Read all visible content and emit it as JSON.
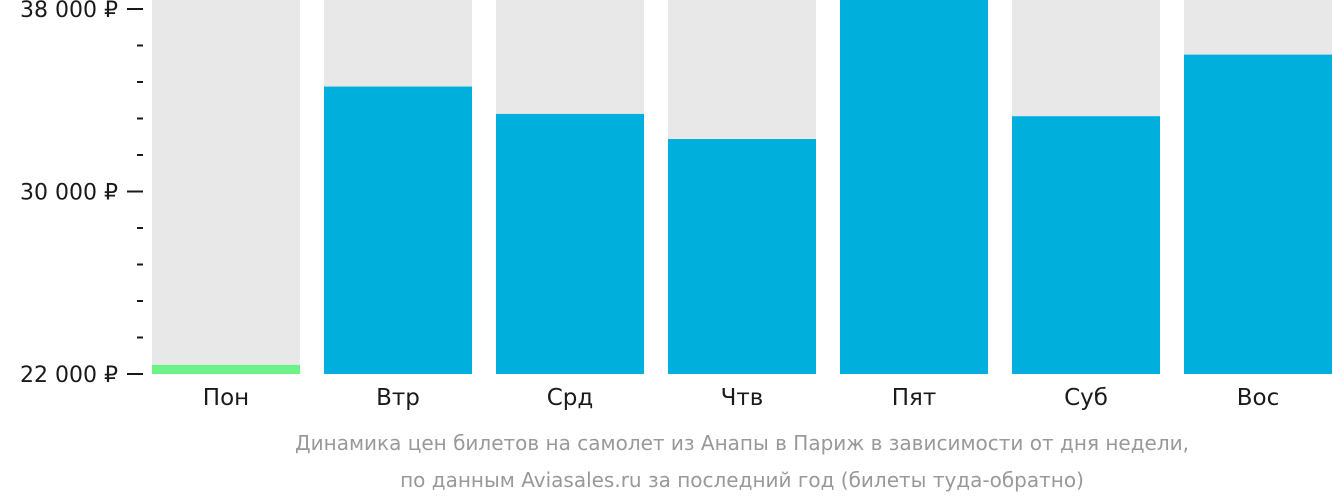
{
  "chart_data": {
    "type": "bar",
    "categories": [
      "Пон",
      "Втр",
      "Срд",
      "Чтв",
      "Пят",
      "Суб",
      "Вос"
    ],
    "values": [
      22400,
      34600,
      33400,
      32300,
      38700,
      33300,
      36000
    ],
    "ylim": [
      22000,
      38000
    ],
    "yticks": [
      22000,
      30000,
      38000
    ],
    "ytick_labels": [
      "22 000 ₽",
      "30 000 ₽",
      "38 000 ₽"
    ],
    "minor_ticks_per_interval": 4,
    "highlight_index": 0,
    "colors": {
      "bar": "#00AFDC",
      "highlight": "#6CF287",
      "track": "#E8E8E8",
      "axis": "#1a1a1a",
      "caption": "#999999"
    },
    "caption": [
      "Динамика цен билетов на самолет из Анапы в Париж в зависимости от дня недели,",
      "по данным Aviasales.ru за последний год (билеты туда-обратно)"
    ]
  }
}
